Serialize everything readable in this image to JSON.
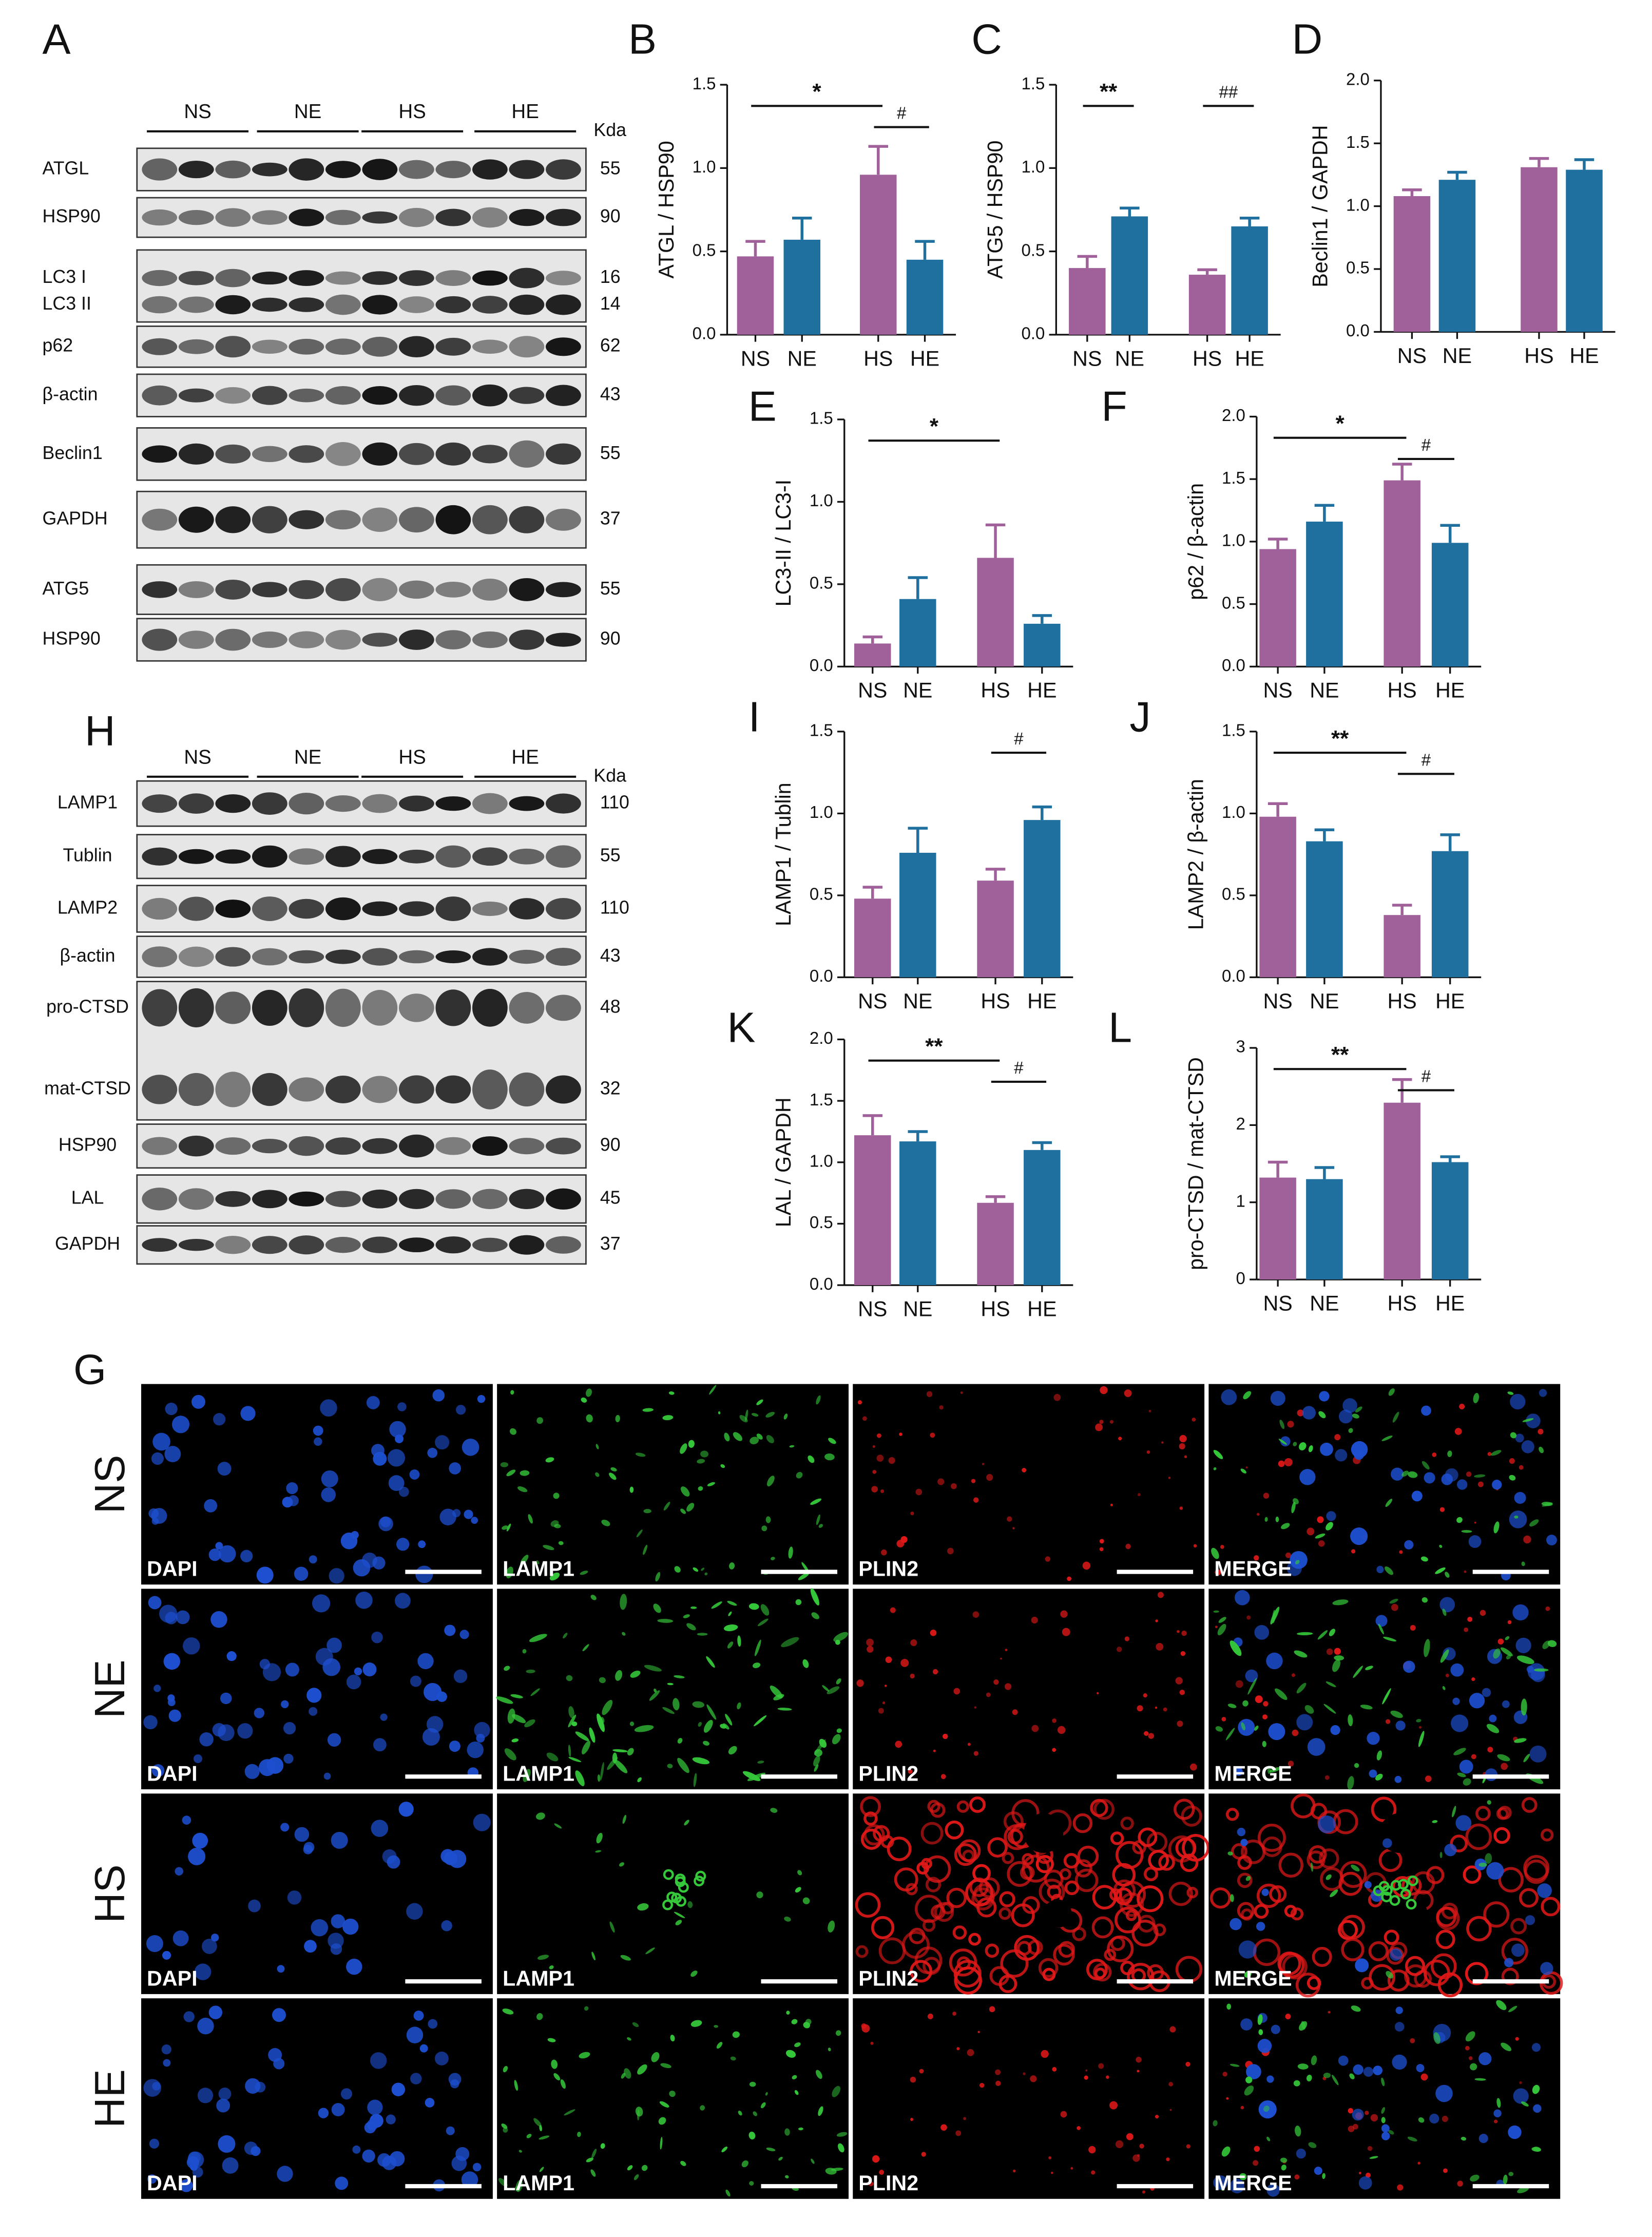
{
  "figure": {
    "panel_letters": {
      "A": "A",
      "H": "H",
      "G": "G"
    },
    "blots": [
      {
        "panel": "A",
        "groups": [
          "NS",
          "NE",
          "HS",
          "HE"
        ],
        "unit": "Kda",
        "rows": [
          {
            "labels": [
              "ATGL"
            ],
            "kda": [
              55
            ]
          },
          {
            "labels": [
              "HSP90"
            ],
            "kda": [
              90
            ]
          },
          {
            "labels": [
              "LC3 I",
              "LC3 II"
            ],
            "kda": [
              16,
              14
            ]
          },
          {
            "labels": [
              "p62"
            ],
            "kda": [
              62
            ]
          },
          {
            "labels": [
              "β-actin"
            ],
            "kda": [
              43
            ]
          },
          {
            "labels": [
              "Beclin1"
            ],
            "kda": [
              55
            ]
          },
          {
            "labels": [
              "GAPDH"
            ],
            "kda": [
              37
            ]
          },
          {
            "labels": [
              "ATG5"
            ],
            "kda": [
              55
            ]
          },
          {
            "labels": [
              "HSP90"
            ],
            "kda": [
              90
            ]
          }
        ]
      },
      {
        "panel": "H",
        "groups": [
          "NS",
          "NE",
          "HS",
          "HE"
        ],
        "unit": "Kda",
        "rows": [
          {
            "labels": [
              "LAMP1"
            ],
            "kda": [
              110
            ]
          },
          {
            "labels": [
              "Tublin"
            ],
            "kda": [
              55
            ]
          },
          {
            "labels": [
              "LAMP2"
            ],
            "kda": [
              110
            ]
          },
          {
            "labels": [
              "β-actin"
            ],
            "kda": [
              43
            ]
          },
          {
            "labels": [
              "pro-CTSD",
              "mat-CTSD"
            ],
            "kda": [
              48,
              32
            ]
          },
          {
            "labels": [
              "HSP90"
            ],
            "kda": [
              90
            ]
          },
          {
            "labels": [
              "LAL"
            ],
            "kda": [
              45
            ]
          },
          {
            "labels": [
              "GAPDH"
            ],
            "kda": [
              37
            ]
          }
        ]
      }
    ],
    "microscopy": {
      "panel": "G",
      "rows": [
        "NS",
        "NE",
        "HS",
        "HE"
      ],
      "columns": [
        "DAPI",
        "LAMP1",
        "PLIN2",
        "MERGE"
      ]
    }
  },
  "chart_data": [
    {
      "type": "bar",
      "panel": "B",
      "y_label": "ATGL / HSP90",
      "categories": [
        "NS",
        "NE",
        "HS",
        "HE"
      ],
      "values": [
        0.47,
        0.57,
        0.96,
        0.45
      ],
      "errors": [
        0.09,
        0.13,
        0.17,
        0.11
      ],
      "colors": [
        "#a0609a",
        "#1f6f9f",
        "#a0609a",
        "#1f6f9f"
      ],
      "ylim": [
        0,
        1.5
      ],
      "yticks": [
        {
          "value": 0,
          "label": "0.0"
        },
        0.5,
        {
          "value": 1,
          "label": "1.0"
        },
        1.5
      ],
      "annotations": [
        {
          "text": "*",
          "span": [
            "NS",
            "HS"
          ]
        },
        {
          "text": "#",
          "span": [
            "HS",
            "HE"
          ]
        }
      ]
    },
    {
      "type": "bar",
      "panel": "C",
      "y_label": "ATG5 / HSP90",
      "categories": [
        "NS",
        "NE",
        "HS",
        "HE"
      ],
      "values": [
        0.4,
        0.71,
        0.36,
        0.65
      ],
      "errors": [
        0.07,
        0.05,
        0.03,
        0.05
      ],
      "colors": [
        "#a0609a",
        "#1f6f9f",
        "#a0609a",
        "#1f6f9f"
      ],
      "ylim": [
        0,
        1.5
      ],
      "yticks": [
        {
          "value": 0,
          "label": "0.0"
        },
        0.5,
        {
          "value": 1,
          "label": "1.0"
        },
        1.5
      ],
      "annotations": [
        {
          "text": "**",
          "span": [
            "NS",
            "NE"
          ]
        },
        {
          "text": "##",
          "span": [
            "HS",
            "HE"
          ]
        }
      ]
    },
    {
      "type": "bar",
      "panel": "D",
      "y_label": "Beclin1 / GAPDH",
      "categories": [
        "NS",
        "NE",
        "HS",
        "HE"
      ],
      "values": [
        1.08,
        1.21,
        1.31,
        1.29
      ],
      "errors": [
        0.05,
        0.06,
        0.07,
        0.08
      ],
      "colors": [
        "#a0609a",
        "#1f6f9f",
        "#a0609a",
        "#1f6f9f"
      ],
      "ylim": [
        0,
        2
      ],
      "yticks": [
        {
          "value": 0,
          "label": "0.0"
        },
        0.5,
        {
          "value": 1,
          "label": "1.0"
        },
        1.5,
        {
          "value": 2,
          "label": "2.0"
        }
      ],
      "annotations": []
    },
    {
      "type": "bar",
      "panel": "E",
      "y_label": "LC3-II / LC3-I",
      "categories": [
        "NS",
        "NE",
        "HS",
        "HE"
      ],
      "values": [
        0.14,
        0.41,
        0.66,
        0.26
      ],
      "errors": [
        0.04,
        0.13,
        0.2,
        0.05
      ],
      "colors": [
        "#a0609a",
        "#1f6f9f",
        "#a0609a",
        "#1f6f9f"
      ],
      "ylim": [
        0,
        1.5
      ],
      "yticks": [
        {
          "value": 0,
          "label": "0.0"
        },
        0.5,
        {
          "value": 1,
          "label": "1.0"
        },
        1.5
      ],
      "annotations": [
        {
          "text": "*",
          "span": [
            "NS",
            "HS"
          ]
        }
      ]
    },
    {
      "type": "bar",
      "panel": "F",
      "y_label": "p62 / β-actin",
      "categories": [
        "NS",
        "NE",
        "HS",
        "HE"
      ],
      "values": [
        0.94,
        1.16,
        1.49,
        0.99
      ],
      "errors": [
        0.08,
        0.13,
        0.13,
        0.14
      ],
      "colors": [
        "#a0609a",
        "#1f6f9f",
        "#a0609a",
        "#1f6f9f"
      ],
      "ylim": [
        0,
        2
      ],
      "yticks": [
        {
          "value": 0,
          "label": "0.0"
        },
        0.5,
        {
          "value": 1,
          "label": "1.0"
        },
        1.5,
        {
          "value": 2,
          "label": "2.0"
        }
      ],
      "annotations": [
        {
          "text": "*",
          "span": [
            "NS",
            "HS"
          ]
        },
        {
          "text": "#",
          "span": [
            "HS",
            "HE"
          ]
        }
      ]
    },
    {
      "type": "bar",
      "panel": "I",
      "y_label": "LAMP1 / Tublin",
      "categories": [
        "NS",
        "NE",
        "HS",
        "HE"
      ],
      "values": [
        0.48,
        0.76,
        0.59,
        0.96
      ],
      "errors": [
        0.07,
        0.15,
        0.07,
        0.08
      ],
      "colors": [
        "#a0609a",
        "#1f6f9f",
        "#a0609a",
        "#1f6f9f"
      ],
      "ylim": [
        0,
        1.5
      ],
      "yticks": [
        {
          "value": 0,
          "label": "0.0"
        },
        0.5,
        {
          "value": 1,
          "label": "1.0"
        },
        1.5
      ],
      "annotations": [
        {
          "text": "#",
          "span": [
            "HS",
            "HE"
          ]
        }
      ]
    },
    {
      "type": "bar",
      "panel": "J",
      "y_label": "LAMP2 / β-actin",
      "categories": [
        "NS",
        "NE",
        "HS",
        "HE"
      ],
      "values": [
        0.98,
        0.83,
        0.38,
        0.77
      ],
      "errors": [
        0.08,
        0.07,
        0.06,
        0.1
      ],
      "colors": [
        "#a0609a",
        "#1f6f9f",
        "#a0609a",
        "#1f6f9f"
      ],
      "ylim": [
        0,
        1.5
      ],
      "yticks": [
        {
          "value": 0,
          "label": "0.0"
        },
        0.5,
        {
          "value": 1,
          "label": "1.0"
        },
        1.5
      ],
      "annotations": [
        {
          "text": "**",
          "span": [
            "NS",
            "HS"
          ]
        },
        {
          "text": "#",
          "span": [
            "HS",
            "HE"
          ]
        }
      ]
    },
    {
      "type": "bar",
      "panel": "K",
      "y_label": "LAL / GAPDH",
      "categories": [
        "NS",
        "NE",
        "HS",
        "HE"
      ],
      "values": [
        1.22,
        1.17,
        0.67,
        1.1
      ],
      "errors": [
        0.16,
        0.08,
        0.05,
        0.06
      ],
      "colors": [
        "#a0609a",
        "#1f6f9f",
        "#a0609a",
        "#1f6f9f"
      ],
      "ylim": [
        0,
        2
      ],
      "yticks": [
        {
          "value": 0,
          "label": "0.0"
        },
        0.5,
        {
          "value": 1,
          "label": "1.0"
        },
        1.5,
        {
          "value": 2,
          "label": "2.0"
        }
      ],
      "annotations": [
        {
          "text": "**",
          "span": [
            "NS",
            "HS"
          ]
        },
        {
          "text": "#",
          "span": [
            "HS",
            "HE"
          ]
        }
      ]
    },
    {
      "type": "bar",
      "panel": "L",
      "y_label": "pro-CTSD / mat-CTSD",
      "categories": [
        "NS",
        "NE",
        "HS",
        "HE"
      ],
      "values": [
        1.32,
        1.3,
        2.29,
        1.52
      ],
      "errors": [
        0.2,
        0.15,
        0.3,
        0.07
      ],
      "colors": [
        "#a0609a",
        "#1f6f9f",
        "#a0609a",
        "#1f6f9f"
      ],
      "ylim": [
        0,
        3
      ],
      "yticks": [
        0,
        1,
        2,
        3
      ],
      "annotations": [
        {
          "text": "**",
          "span": [
            "NS",
            "HS"
          ]
        },
        {
          "text": "#",
          "span": [
            "HS",
            "HE"
          ]
        }
      ]
    }
  ]
}
